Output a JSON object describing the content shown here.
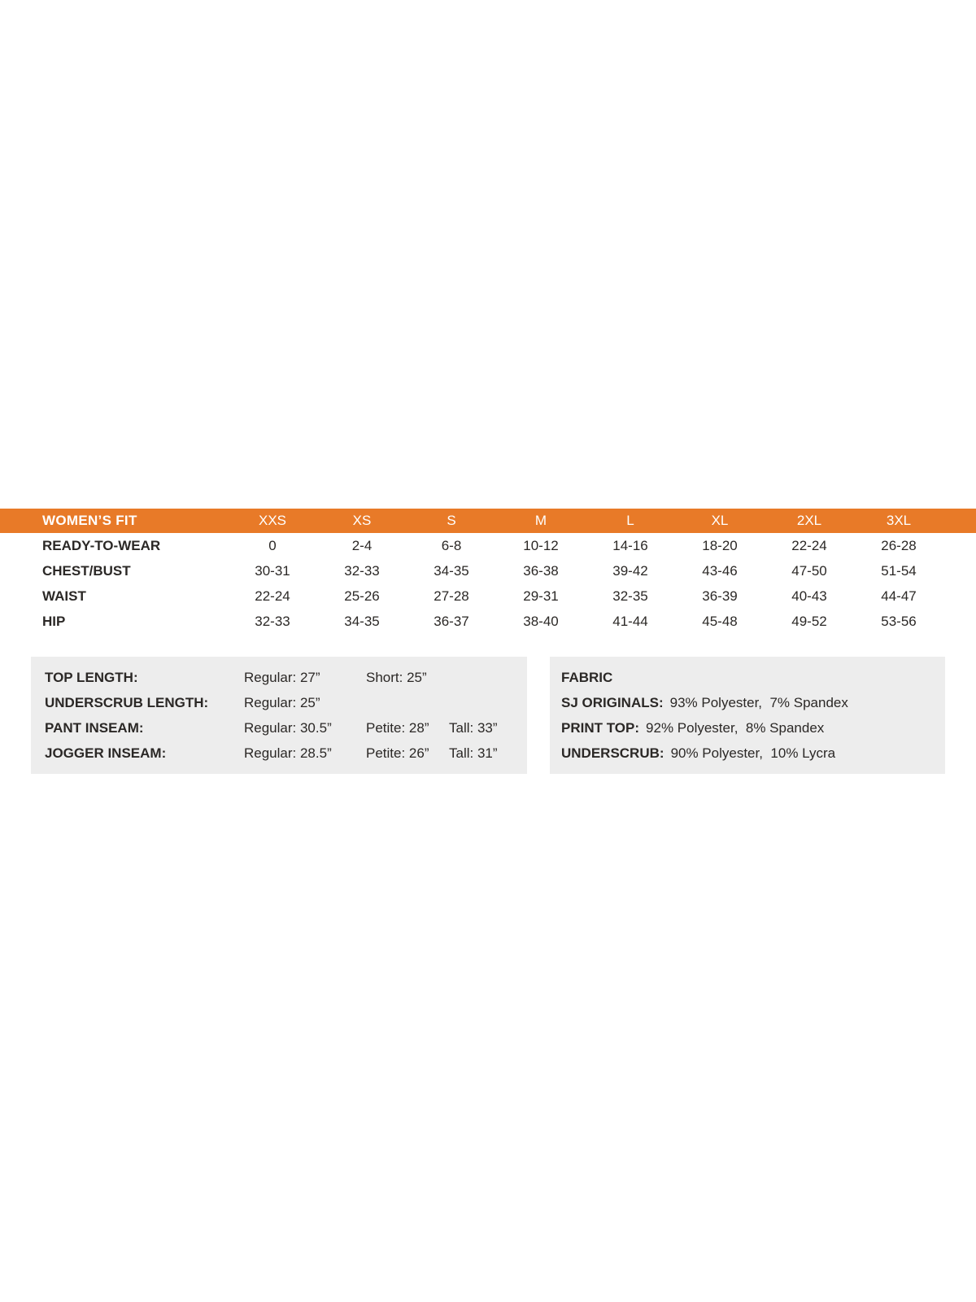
{
  "colors": {
    "accent_orange": "#E87A28",
    "box_gray": "#EDEDED",
    "text_dark": "#2B2826",
    "header_text": "#FFFFFF"
  },
  "chart_data": {
    "type": "table",
    "title": "WOMEN’S FIT",
    "columns": [
      "XXS",
      "XS",
      "S",
      "M",
      "L",
      "XL",
      "2XL",
      "3XL"
    ],
    "rows": [
      {
        "label": "READY-TO-WEAR",
        "values": [
          "0",
          "2-4",
          "6-8",
          "10-12",
          "14-16",
          "18-20",
          "22-24",
          "26-28"
        ]
      },
      {
        "label": "CHEST/BUST",
        "values": [
          "30-31",
          "32-33",
          "34-35",
          "36-38",
          "39-42",
          "43-46",
          "47-50",
          "51-54"
        ]
      },
      {
        "label": "WAIST",
        "values": [
          "22-24",
          "25-26",
          "27-28",
          "29-31",
          "32-35",
          "36-39",
          "40-43",
          "44-47"
        ]
      },
      {
        "label": "HIP",
        "values": [
          "32-33",
          "34-35",
          "36-37",
          "38-40",
          "41-44",
          "45-48",
          "49-52",
          "53-56"
        ]
      }
    ],
    "layout_hints": {
      "header_bg": "#E87A28",
      "header_text_color": "#FFFFFF",
      "grid": false
    }
  },
  "length_box": {
    "rows": [
      {
        "label": "TOP LENGTH:",
        "values": [
          "Regular: 27”",
          "Short: 25”"
        ]
      },
      {
        "label": "UNDERSCRUB LENGTH:",
        "values": [
          "Regular: 25”"
        ]
      },
      {
        "label": "PANT INSEAM:",
        "values": [
          "Regular: 30.5”",
          "Petite: 28”",
          "Tall: 33”"
        ]
      },
      {
        "label": "JOGGER INSEAM:",
        "values": [
          "Regular: 28.5”",
          "Petite: 26”",
          "Tall: 31”"
        ]
      }
    ]
  },
  "fabric_box": {
    "title": "FABRIC",
    "rows": [
      {
        "label": "SJ ORIGINALS:",
        "value": "93% Polyester,  7% Spandex"
      },
      {
        "label": "PRINT TOP:",
        "value": "92% Polyester,  8% Spandex"
      },
      {
        "label": "UNDERSCRUB:",
        "value": "90% Polyester,  10% Lycra"
      }
    ]
  }
}
